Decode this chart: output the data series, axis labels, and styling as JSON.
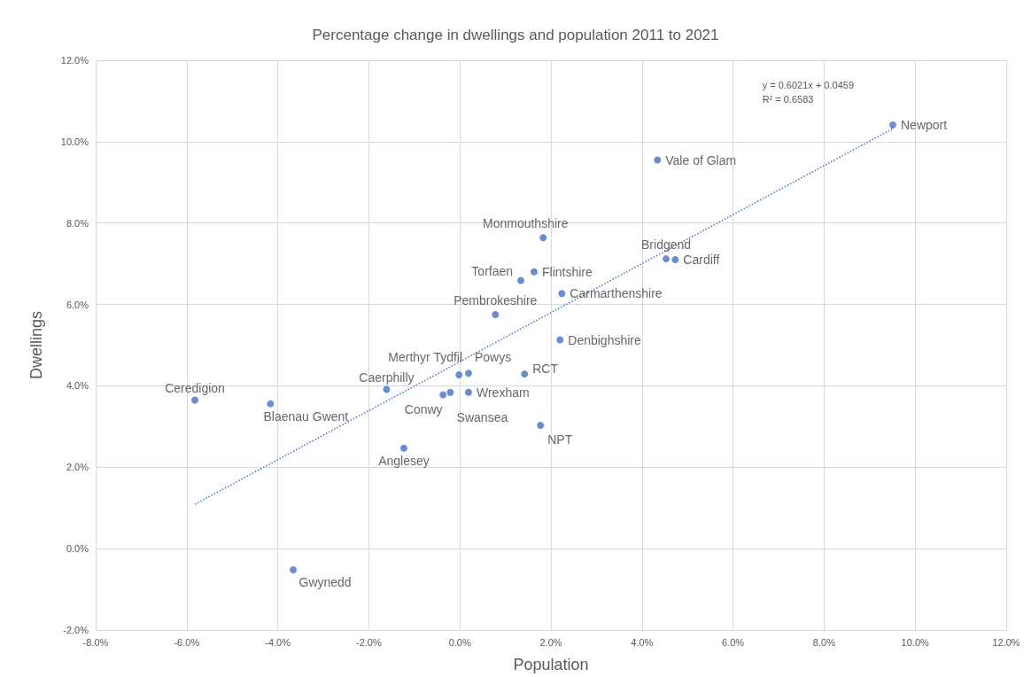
{
  "chart_data": {
    "type": "scatter",
    "title": "Percentage change in dwellings and population 2011 to 2021",
    "xlabel": "Population",
    "ylabel": "Dwellings",
    "x": [
      9.51,
      4.34,
      1.83,
      4.53,
      4.73,
      1.63,
      1.34,
      2.24,
      0.78,
      2.2,
      -0.02,
      0.19,
      1.42,
      -1.61,
      0.19,
      -0.21,
      -0.37,
      -5.82,
      -4.16,
      1.77,
      -1.23,
      -3.66
    ],
    "series": [
      {
        "color": "#4472c4",
        "values": [
          10.41,
          9.55,
          7.64,
          7.12,
          7.1,
          6.8,
          6.59,
          6.27,
          5.75,
          5.13,
          4.27,
          4.31,
          4.29,
          3.91,
          3.84,
          3.84,
          3.78,
          3.65,
          3.56,
          3.03,
          2.47,
          -0.52
        ]
      },
      {
        "type": "line",
        "line_style": "dotted",
        "marker": "none",
        "color": "#4472c4",
        "x": [
          -5.82,
          9.51
        ],
        "values": [
          1.09,
          10.32
        ]
      }
    ],
    "annotations": [
      {
        "text": "Newport",
        "x": 9.51,
        "y": 10.41
      },
      {
        "text": "Vale of Glam",
        "x": 4.34,
        "y": 9.55
      },
      {
        "text": "Monmouthshire",
        "x": 1.83,
        "y": 7.64
      },
      {
        "text": "Bridgend",
        "x": 4.53,
        "y": 7.12
      },
      {
        "text": "Cardiff",
        "x": 4.73,
        "y": 7.1
      },
      {
        "text": "Flintshire",
        "x": 1.63,
        "y": 6.8
      },
      {
        "text": "Torfaen",
        "x": 1.34,
        "y": 6.59
      },
      {
        "text": "Carmarthenshire",
        "x": 2.24,
        "y": 6.27
      },
      {
        "text": "Pembrokeshire",
        "x": 0.78,
        "y": 5.75
      },
      {
        "text": "Denbighshire",
        "x": 2.2,
        "y": 5.13
      },
      {
        "text": "Merthyr Tydfil",
        "x": -0.02,
        "y": 4.27
      },
      {
        "text": "Powys",
        "x": 0.19,
        "y": 4.31
      },
      {
        "text": "RCT",
        "x": 1.42,
        "y": 4.29
      },
      {
        "text": "Caerphilly",
        "x": -1.61,
        "y": 3.91
      },
      {
        "text": "Wrexham",
        "x": 0.19,
        "y": 3.84
      },
      {
        "text": "Swansea",
        "x": -0.21,
        "y": 3.84
      },
      {
        "text": "Conwy",
        "x": -0.37,
        "y": 3.78
      },
      {
        "text": "Ceredigion",
        "x": -5.82,
        "y": 3.65
      },
      {
        "text": "Blaenau Gwent",
        "x": -4.16,
        "y": 3.56
      },
      {
        "text": "NPT",
        "x": 1.77,
        "y": 3.03
      },
      {
        "text": "Anglesey",
        "x": -1.23,
        "y": 2.47
      },
      {
        "text": "Gwynedd",
        "x": -3.66,
        "y": -0.52
      },
      "y = 0.6021x + 0.0459",
      "R² = 0.6583"
    ],
    "marker": "circle",
    "grid": true,
    "xlim": [
      -8,
      12
    ],
    "xticks": [
      {
        "value": -8,
        "label": "-8.0%"
      },
      {
        "value": -6,
        "label": "-6.0%"
      },
      {
        "value": -4,
        "label": "-4.0%"
      },
      {
        "value": -2,
        "label": "-2.0%"
      },
      {
        "value": 0,
        "label": "0.0%"
      },
      {
        "value": 2,
        "label": "2.0%"
      },
      {
        "value": 4,
        "label": "4.0%"
      },
      {
        "value": 6,
        "label": "6.0%"
      },
      {
        "value": 8,
        "label": "8.0%"
      },
      {
        "value": 10,
        "label": "10.0%"
      },
      {
        "value": 12,
        "label": "12.0%"
      }
    ],
    "ylim": [
      -2,
      12
    ],
    "yticks": [
      {
        "value": -2,
        "label": "-2.0%"
      },
      {
        "value": 0,
        "label": "0.0%"
      },
      {
        "value": 2,
        "label": "2.0%"
      },
      {
        "value": 4,
        "label": "4.0%"
      },
      {
        "value": 6,
        "label": "6.0%"
      },
      {
        "value": 8,
        "label": "8.0%"
      },
      {
        "value": 10,
        "label": "10.0%"
      },
      {
        "value": 12,
        "label": "12.0%"
      }
    ]
  }
}
